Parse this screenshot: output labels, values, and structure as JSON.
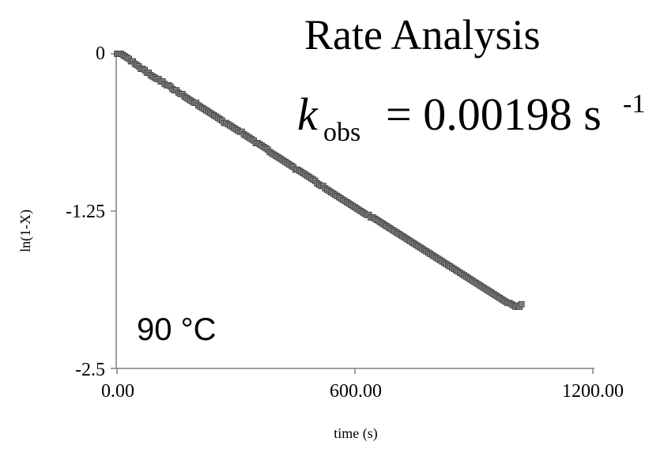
{
  "chart_data": {
    "type": "scatter",
    "title": "Rate Analysis",
    "k_label": "k",
    "k_subscript": "obs",
    "k_value": "= 0.00198 s",
    "k_superscript": "-1",
    "temperature_label": "90 °C",
    "xlabel": "time (s)",
    "ylabel": "ln(1-X)",
    "xlim": [
      0,
      1200
    ],
    "ylim": [
      -2.5,
      0
    ],
    "x_ticks": [
      0,
      600,
      1200
    ],
    "x_tick_labels": [
      "0.00",
      "600.00",
      "1200.00"
    ],
    "y_ticks": [
      0,
      -1.25,
      -2.5
    ],
    "y_tick_labels": [
      "0",
      "-1.25",
      "-2.5"
    ],
    "grid": false,
    "marker": "square",
    "marker_color": "#808080",
    "x": [
      0,
      5,
      10,
      15,
      20,
      25,
      30,
      35,
      40,
      45,
      50,
      55,
      60,
      65,
      70,
      75,
      80,
      85,
      90,
      95,
      100,
      105,
      110,
      115,
      120,
      125,
      130,
      135,
      140,
      145,
      150,
      155,
      160,
      165,
      170,
      175,
      180,
      185,
      190,
      195,
      200,
      205,
      210,
      215,
      220,
      225,
      230,
      235,
      240,
      245,
      250,
      255,
      260,
      265,
      270,
      275,
      280,
      285,
      290,
      295,
      300,
      305,
      310,
      315,
      320,
      325,
      330,
      335,
      340,
      345,
      350,
      355,
      360,
      365,
      370,
      375,
      380,
      385,
      390,
      395,
      400,
      405,
      410,
      415,
      420,
      425,
      430,
      435,
      440,
      445,
      450,
      455,
      460,
      465,
      470,
      475,
      480,
      485,
      490,
      495,
      500,
      505,
      510,
      515,
      520,
      525,
      530,
      535,
      540,
      545,
      550,
      555,
      560,
      565,
      570,
      575,
      580,
      585,
      590,
      595,
      600,
      605,
      610,
      615,
      620,
      625,
      630,
      635,
      640,
      645,
      650,
      655,
      660,
      665,
      670,
      675,
      680,
      685,
      690,
      695,
      700,
      705,
      710,
      715,
      720,
      725,
      730,
      735,
      740,
      745,
      750,
      755,
      760,
      765,
      770,
      775,
      780,
      785,
      790,
      795,
      800,
      805,
      810,
      815,
      820,
      825,
      830,
      835,
      840,
      845,
      850,
      855,
      860,
      865,
      870,
      875,
      880,
      885,
      890,
      895,
      900,
      905,
      910,
      915,
      920,
      925,
      930,
      935,
      940,
      945,
      950,
      955,
      960,
      965,
      970,
      975,
      980,
      985,
      990,
      995,
      1000,
      1005,
      1010,
      1015,
      1020
    ],
    "y": [
      0,
      0,
      0,
      -0.01,
      -0.02,
      -0.03,
      -0.04,
      -0.06,
      -0.06,
      -0.08,
      -0.09,
      -0.1,
      -0.12,
      -0.12,
      -0.13,
      -0.15,
      -0.15,
      -0.17,
      -0.18,
      -0.19,
      -0.2,
      -0.2,
      -0.22,
      -0.22,
      -0.24,
      -0.25,
      -0.25,
      -0.26,
      -0.28,
      -0.29,
      -0.29,
      -0.31,
      -0.32,
      -0.32,
      -0.34,
      -0.35,
      -0.36,
      -0.37,
      -0.38,
      -0.39,
      -0.39,
      -0.41,
      -0.42,
      -0.43,
      -0.44,
      -0.45,
      -0.46,
      -0.47,
      -0.48,
      -0.49,
      -0.5,
      -0.51,
      -0.52,
      -0.53,
      -0.55,
      -0.55,
      -0.56,
      -0.57,
      -0.58,
      -0.59,
      -0.6,
      -0.61,
      -0.62,
      -0.62,
      -0.64,
      -0.65,
      -0.66,
      -0.67,
      -0.68,
      -0.69,
      -0.71,
      -0.71,
      -0.72,
      -0.73,
      -0.74,
      -0.75,
      -0.76,
      -0.78,
      -0.79,
      -0.8,
      -0.81,
      -0.82,
      -0.83,
      -0.84,
      -0.85,
      -0.86,
      -0.87,
      -0.88,
      -0.89,
      -0.9,
      -0.92,
      -0.92,
      -0.93,
      -0.94,
      -0.95,
      -0.96,
      -0.97,
      -0.98,
      -0.99,
      -1,
      -1.01,
      -1.03,
      -1.04,
      -1.05,
      -1.05,
      -1.07,
      -1.08,
      -1.09,
      -1.1,
      -1.11,
      -1.12,
      -1.13,
      -1.14,
      -1.15,
      -1.16,
      -1.17,
      -1.18,
      -1.19,
      -1.2,
      -1.21,
      -1.22,
      -1.23,
      -1.24,
      -1.25,
      -1.26,
      -1.27,
      -1.28,
      -1.28,
      -1.3,
      -1.3,
      -1.31,
      -1.32,
      -1.33,
      -1.34,
      -1.35,
      -1.36,
      -1.37,
      -1.38,
      -1.39,
      -1.4,
      -1.41,
      -1.42,
      -1.43,
      -1.44,
      -1.45,
      -1.46,
      -1.47,
      -1.48,
      -1.49,
      -1.5,
      -1.51,
      -1.52,
      -1.53,
      -1.54,
      -1.55,
      -1.56,
      -1.57,
      -1.58,
      -1.59,
      -1.6,
      -1.61,
      -1.62,
      -1.63,
      -1.64,
      -1.65,
      -1.66,
      -1.67,
      -1.68,
      -1.69,
      -1.7,
      -1.71,
      -1.72,
      -1.73,
      -1.74,
      -1.75,
      -1.76,
      -1.77,
      -1.78,
      -1.79,
      -1.8,
      -1.81,
      -1.82,
      -1.83,
      -1.84,
      -1.85,
      -1.86,
      -1.87,
      -1.88,
      -1.89,
      -1.9,
      -1.91,
      -1.92,
      -1.93,
      -1.94,
      -1.95,
      -1.96,
      -1.97,
      -1.98,
      -1.98,
      -1.99,
      -2.0,
      -2.01,
      -2.0,
      -2.01,
      -1.99
    ]
  }
}
